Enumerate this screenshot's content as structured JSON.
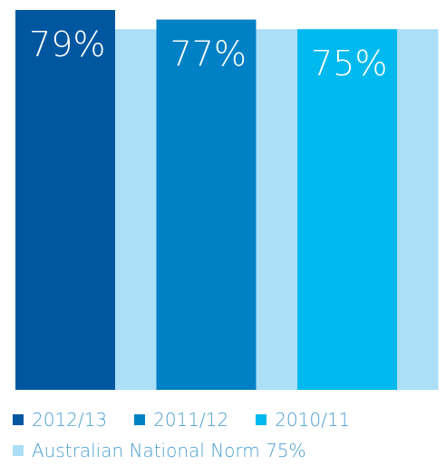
{
  "chart_data": {
    "type": "bar",
    "series": [
      {
        "name": "2012/13",
        "value": 79,
        "label": "79%",
        "color": "#0057a0"
      },
      {
        "name": "2011/12",
        "value": 77,
        "label": "77%",
        "color": "#0080c5"
      },
      {
        "name": "2010/11",
        "value": 75,
        "label": "75%",
        "color": "#00b9ee"
      }
    ],
    "norm": {
      "name": "Australian National Norm 75%",
      "value": 75,
      "color": "#aadff7"
    },
    "ylim": [
      0,
      79
    ],
    "grid": false,
    "legend_position": "bottom",
    "title": "",
    "xlabel": "",
    "ylabel": ""
  }
}
